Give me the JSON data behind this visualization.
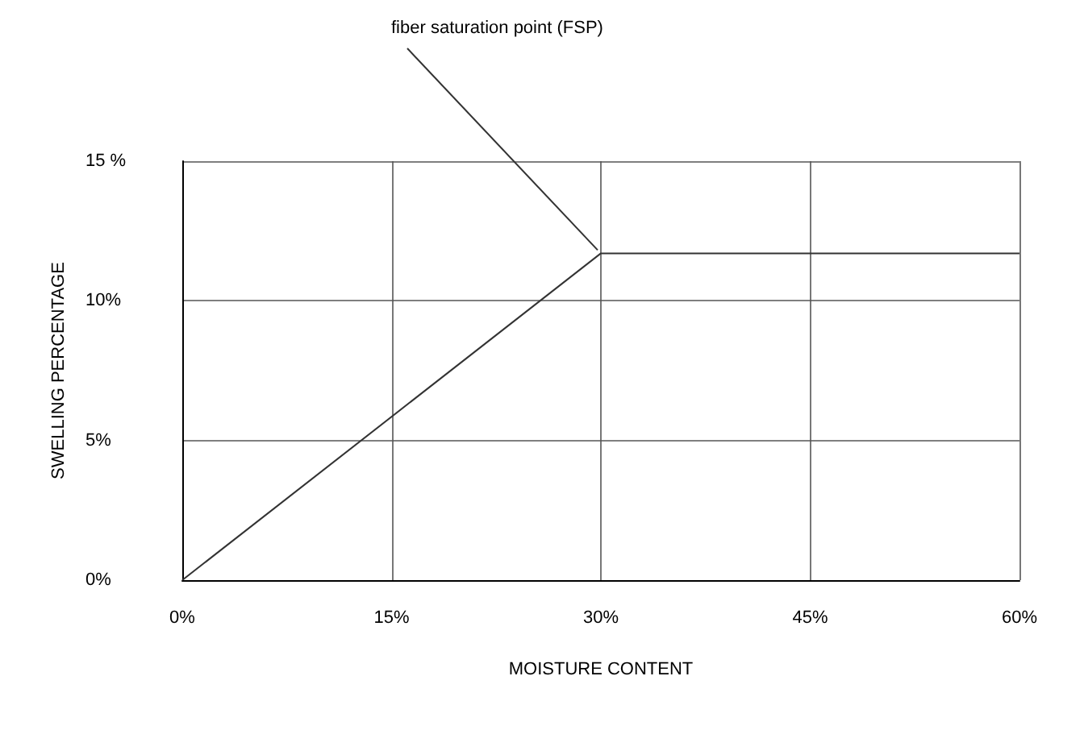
{
  "chart_data": {
    "type": "line",
    "xlabel": "MOISTURE CONTENT",
    "ylabel": "SWELLING PERCENTAGE",
    "annotations": [
      {
        "text": "fiber saturation point (FSP)",
        "x": 30,
        "y": 11.7
      }
    ],
    "x": [
      0,
      30,
      60
    ],
    "series": [
      {
        "color": "#333333",
        "values": [
          0,
          11.7,
          11.7
        ]
      }
    ],
    "xlim": [
      0,
      60
    ],
    "xticks": [
      {
        "value": 0,
        "label": "0%"
      },
      {
        "value": 15,
        "label": "15%"
      },
      {
        "value": 30,
        "label": "30%"
      },
      {
        "value": 45,
        "label": "45%"
      },
      {
        "value": 60,
        "label": "60%"
      }
    ],
    "ylim": [
      0,
      15
    ],
    "yticks": [
      {
        "value": 0,
        "label": "0%"
      },
      {
        "value": 5,
        "label": "5%"
      },
      {
        "value": 10,
        "label": "10%"
      },
      {
        "value": 15,
        "label": "15 %"
      }
    ],
    "grid": true,
    "marker": "none",
    "line_style": "solid"
  }
}
